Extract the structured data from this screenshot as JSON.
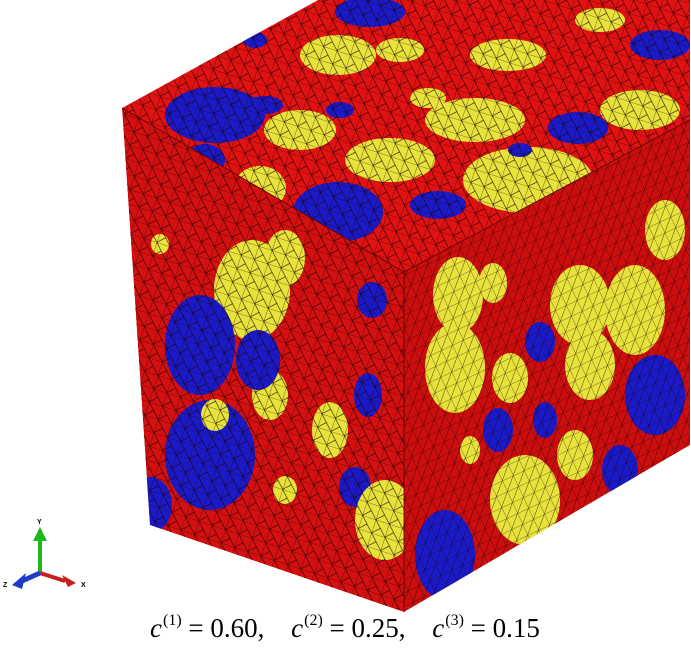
{
  "colors": {
    "matrix": "#e01212",
    "phase_2": "#e8e33c",
    "phase_3": "#1a1ac8",
    "mesh_lines": "#1b0000",
    "axis_y": "#1cb81c",
    "axis_x": "#c81e1e",
    "axis_z": "#1e3cc8"
  },
  "triad": {
    "y_label": "Y",
    "x_label": "X",
    "z_label": "Z"
  },
  "caption": {
    "terms": [
      {
        "symbol": "c",
        "superscript": "(1)",
        "equals": " = 0.60,"
      },
      {
        "symbol": "c",
        "superscript": "(2)",
        "equals": " = 0.25,"
      },
      {
        "symbol": "c",
        "superscript": "(3)",
        "equals": " = 0.15"
      }
    ]
  }
}
